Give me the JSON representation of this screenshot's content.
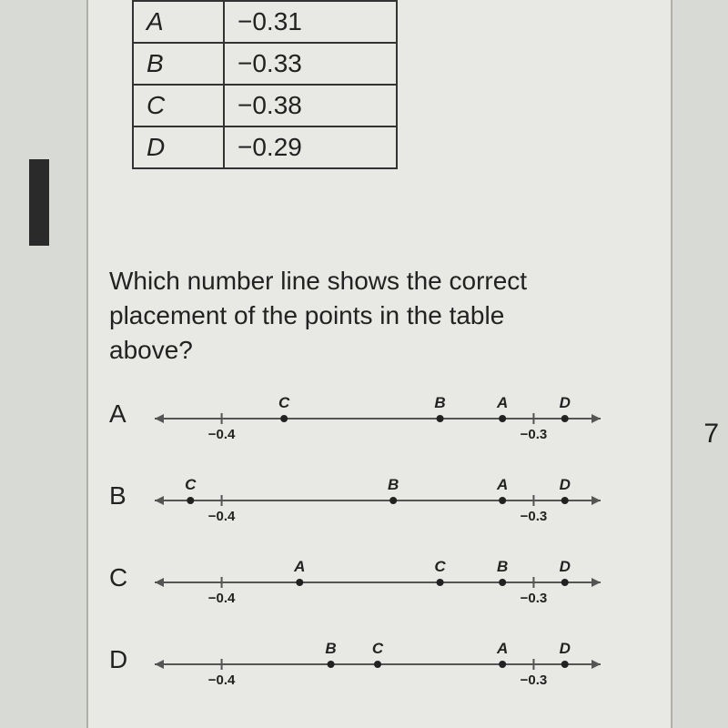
{
  "table": {
    "rows": [
      {
        "point": "A",
        "value": "−0.31"
      },
      {
        "point": "B",
        "value": "−0.33"
      },
      {
        "point": "C",
        "value": "−0.38"
      },
      {
        "point": "D",
        "value": "−0.29"
      }
    ]
  },
  "question": "Which number line shows the correct placement of the points in the table above?",
  "numberlines": {
    "xmin": -0.42,
    "xmax": -0.28,
    "tick_values": [
      -0.4,
      -0.3
    ],
    "tick_labels": [
      "−0.4",
      "−0.3"
    ],
    "axis_color": "#555",
    "point_color": "#222",
    "label_color": "#222",
    "tick_label_fontsize": 15,
    "point_label_fontsize": 17,
    "point_radius": 4,
    "options": [
      {
        "label": "A",
        "points": [
          {
            "name": "C",
            "x": -0.38
          },
          {
            "name": "B",
            "x": -0.33
          },
          {
            "name": "A",
            "x": -0.31
          },
          {
            "name": "D",
            "x": -0.29
          }
        ]
      },
      {
        "label": "B",
        "points": [
          {
            "name": "C",
            "x": -0.41
          },
          {
            "name": "B",
            "x": -0.345
          },
          {
            "name": "A",
            "x": -0.31
          },
          {
            "name": "D",
            "x": -0.29
          }
        ]
      },
      {
        "label": "C",
        "points": [
          {
            "name": "A",
            "x": -0.375
          },
          {
            "name": "C",
            "x": -0.33
          },
          {
            "name": "B",
            "x": -0.31
          },
          {
            "name": "D",
            "x": -0.29
          }
        ]
      },
      {
        "label": "D",
        "points": [
          {
            "name": "B",
            "x": -0.365
          },
          {
            "name": "C",
            "x": -0.35
          },
          {
            "name": "A",
            "x": -0.31
          },
          {
            "name": "D",
            "x": -0.29
          }
        ]
      }
    ]
  },
  "right_marker": "7",
  "colors": {
    "page_bg": "#d8dad5",
    "content_bg": "#e8e9e4",
    "table_border": "#333",
    "text": "#222"
  }
}
